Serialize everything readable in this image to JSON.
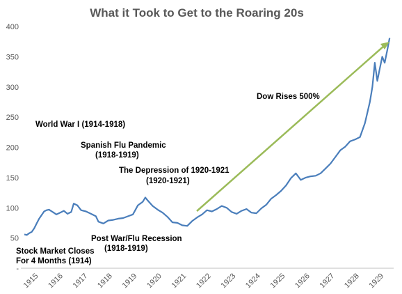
{
  "chart_data": {
    "type": "line",
    "title": "What it Took to Get to the Roaring 20s",
    "xlabel": "",
    "ylabel": "",
    "ylim": [
      0,
      400
    ],
    "y_ticks": [
      "400",
      "350",
      "300",
      "250",
      "200",
      "150",
      "100",
      "50",
      "-"
    ],
    "y_tick_values": [
      400,
      350,
      300,
      250,
      200,
      150,
      100,
      50,
      0
    ],
    "x_range": [
      1915.0,
      1929.85
    ],
    "x_ticks": [
      "1915",
      "1916",
      "1917",
      "1918",
      "1919",
      "1920",
      "1921",
      "1922",
      "1923",
      "1924",
      "1925",
      "1926",
      "1927",
      "1928",
      "1929"
    ],
    "grid": false,
    "line_color": "#4a7ebb",
    "arrow_color": "#9bbb59",
    "series": [
      {
        "name": "",
        "x": [
          1915.0,
          1915.1,
          1915.2,
          1915.3,
          1915.4,
          1915.5,
          1915.6,
          1915.7,
          1915.8,
          1915.9,
          1916.0,
          1916.15,
          1916.3,
          1916.45,
          1916.6,
          1916.75,
          1916.9,
          1917.0,
          1917.15,
          1917.3,
          1917.5,
          1917.7,
          1917.9,
          1918.0,
          1918.2,
          1918.4,
          1918.6,
          1918.8,
          1919.0,
          1919.2,
          1919.4,
          1919.6,
          1919.8,
          1919.9,
          1920.0,
          1920.2,
          1920.4,
          1920.6,
          1920.8,
          1921.0,
          1921.2,
          1921.4,
          1921.6,
          1921.8,
          1922.0,
          1922.2,
          1922.4,
          1922.6,
          1922.8,
          1923.0,
          1923.2,
          1923.4,
          1923.6,
          1923.8,
          1924.0,
          1924.2,
          1924.4,
          1924.6,
          1924.8,
          1925.0,
          1925.2,
          1925.4,
          1925.6,
          1925.8,
          1926.0,
          1926.2,
          1926.4,
          1926.6,
          1926.8,
          1927.0,
          1927.2,
          1927.4,
          1927.6,
          1927.8,
          1928.0,
          1928.2,
          1928.4,
          1928.6,
          1928.8,
          1929.0,
          1929.1,
          1929.2,
          1929.3,
          1929.4,
          1929.5,
          1929.6,
          1929.7,
          1929.8
        ],
        "values": [
          56,
          55,
          58,
          60,
          66,
          74,
          82,
          88,
          94,
          96,
          97,
          93,
          89,
          92,
          95,
          90,
          93,
          107,
          104,
          96,
          94,
          90,
          86,
          77,
          74,
          79,
          80,
          82,
          83,
          86,
          89,
          104,
          110,
          117,
          112,
          103,
          97,
          92,
          85,
          76,
          75,
          71,
          70,
          78,
          84,
          89,
          96,
          94,
          98,
          103,
          100,
          93,
          90,
          95,
          98,
          92,
          91,
          99,
          105,
          115,
          121,
          128,
          137,
          149,
          157,
          146,
          150,
          152,
          153,
          157,
          165,
          173,
          184,
          195,
          201,
          210,
          213,
          217,
          240,
          275,
          300,
          340,
          310,
          330,
          350,
          340,
          360,
          381
        ]
      }
    ],
    "annotations": [
      {
        "text": "Dow Rises 500%"
      },
      {
        "text": "World War I (1914-1918)"
      },
      {
        "text": "Spanish Flu Pandemic"
      },
      {
        "text": "(1918-1919)"
      },
      {
        "text": "The Depression of 1920-1921"
      },
      {
        "text": "(1920-1921)"
      },
      {
        "text": "Post War/Flu Recession"
      },
      {
        "text": "(1918-1919)"
      },
      {
        "text": "Stock Market Closes"
      },
      {
        "text": "For 4 Months (1914)"
      }
    ]
  }
}
